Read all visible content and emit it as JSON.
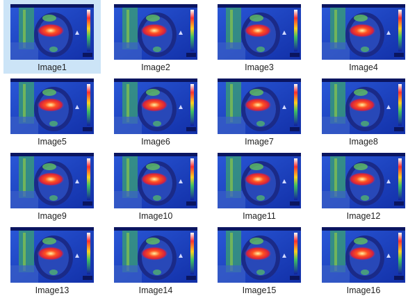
{
  "items": [
    {
      "label": "Image1",
      "selected": true
    },
    {
      "label": "Image2",
      "selected": false
    },
    {
      "label": "Image3",
      "selected": false
    },
    {
      "label": "Image4",
      "selected": false
    },
    {
      "label": "Image5",
      "selected": false
    },
    {
      "label": "Image6",
      "selected": false
    },
    {
      "label": "Image7",
      "selected": false
    },
    {
      "label": "Image8",
      "selected": false
    },
    {
      "label": "Image9",
      "selected": false
    },
    {
      "label": "Image10",
      "selected": false
    },
    {
      "label": "Image11",
      "selected": false
    },
    {
      "label": "Image12",
      "selected": false
    },
    {
      "label": "Image13",
      "selected": false
    },
    {
      "label": "Image14",
      "selected": false
    },
    {
      "label": "Image15",
      "selected": false
    },
    {
      "label": "Image16",
      "selected": false
    }
  ]
}
